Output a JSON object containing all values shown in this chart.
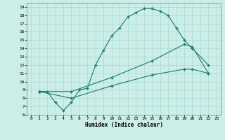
{
  "xlabel": "Humidex (Indice chaleur)",
  "bg_color": "#cceee8",
  "grid_color": "#aad8d0",
  "line_color": "#1a7a6e",
  "xlim": [
    -0.5,
    23.5
  ],
  "ylim": [
    6,
    19.5
  ],
  "xticks": [
    0,
    1,
    2,
    3,
    4,
    5,
    6,
    7,
    8,
    9,
    10,
    11,
    12,
    13,
    14,
    15,
    16,
    17,
    18,
    19,
    20,
    21,
    22,
    23
  ],
  "yticks": [
    6,
    7,
    8,
    9,
    10,
    11,
    12,
    13,
    14,
    15,
    16,
    17,
    18,
    19
  ],
  "line1_x": [
    1,
    2,
    3,
    4,
    5,
    6,
    7,
    8,
    9,
    10,
    11,
    12,
    13,
    14,
    15,
    16,
    17,
    18,
    19,
    20,
    22
  ],
  "line1_y": [
    8.8,
    8.8,
    7.5,
    6.5,
    7.5,
    9.0,
    9.2,
    12.0,
    13.8,
    15.5,
    16.5,
    17.8,
    18.3,
    18.8,
    18.8,
    18.5,
    18.0,
    16.5,
    15.0,
    14.0,
    12.0
  ],
  "line2_x": [
    1,
    5,
    10,
    15,
    19,
    20,
    22
  ],
  "line2_y": [
    8.8,
    8.8,
    10.5,
    12.5,
    14.5,
    14.2,
    11.0
  ],
  "line3_x": [
    1,
    5,
    10,
    15,
    19,
    20,
    22
  ],
  "line3_y": [
    8.8,
    8.0,
    9.5,
    10.8,
    11.5,
    11.5,
    11.0
  ]
}
